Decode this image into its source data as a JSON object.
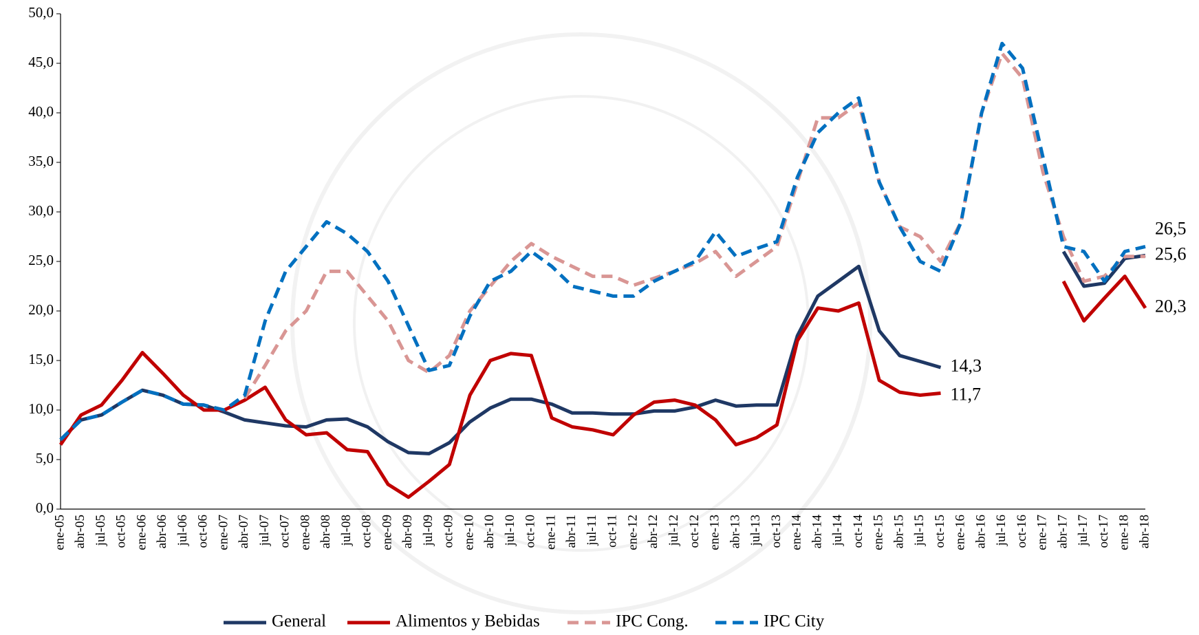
{
  "chart_data": {
    "type": "line",
    "categories": [
      "ene-05",
      "abr-05",
      "jul-05",
      "oct-05",
      "ene-06",
      "abr-06",
      "jul-06",
      "oct-06",
      "ene-07",
      "abr-07",
      "jul-07",
      "oct-07",
      "ene-08",
      "abr-08",
      "jul-08",
      "oct-08",
      "ene-09",
      "abr-09",
      "jul-09",
      "oct-09",
      "ene-10",
      "abr-10",
      "jul-10",
      "oct-10",
      "ene-11",
      "abr-11",
      "jul-11",
      "oct-11",
      "ene-12",
      "abr-12",
      "jul-12",
      "oct-12",
      "ene-13",
      "abr-13",
      "jul-13",
      "oct-13",
      "ene-14",
      "abr-14",
      "jul-14",
      "oct-14",
      "ene-15",
      "abr-15",
      "jul-15",
      "oct-15",
      "ene-16",
      "abr-16",
      "jul-16",
      "oct-16",
      "ene-17",
      "abr-17",
      "jul-17",
      "oct-17",
      "ene-18",
      "abr-18"
    ],
    "series": [
      {
        "name": "General",
        "color": "#1f3864",
        "dash": false,
        "values": [
          7.0,
          9.0,
          9.5,
          10.8,
          12.0,
          11.5,
          10.6,
          10.5,
          9.8,
          9.0,
          8.7,
          8.4,
          8.3,
          9.0,
          9.1,
          8.3,
          6.8,
          5.7,
          5.6,
          6.7,
          8.8,
          10.2,
          11.1,
          11.1,
          10.6,
          9.7,
          9.7,
          9.6,
          9.6,
          9.9,
          9.9,
          10.3,
          11.0,
          10.4,
          10.5,
          10.5,
          17.5,
          21.5,
          23.0,
          24.5,
          18.0,
          15.5,
          14.9,
          14.3,
          null,
          null,
          null,
          null,
          null,
          26.0,
          22.5,
          22.8,
          25.3,
          25.6
        ],
        "value_labels": [
          null,
          null,
          null,
          null,
          null,
          null,
          null,
          null,
          null,
          null,
          null,
          null,
          null,
          null,
          null,
          null,
          null,
          null,
          null,
          null,
          null,
          null,
          null,
          null,
          null,
          null,
          null,
          null,
          null,
          null,
          null,
          null,
          null,
          null,
          null,
          null,
          null,
          null,
          null,
          null,
          null,
          null,
          null,
          "14,3",
          null,
          null,
          null,
          null,
          null,
          null,
          null,
          null,
          null,
          "25,6"
        ]
      },
      {
        "name": "Alimentos y Bebidas",
        "color": "#c00000",
        "dash": false,
        "values": [
          6.5,
          9.5,
          10.5,
          13.0,
          15.8,
          13.7,
          11.5,
          10.0,
          10.0,
          11.0,
          12.3,
          9.0,
          7.5,
          7.7,
          6.0,
          5.8,
          2.5,
          1.2,
          2.8,
          4.5,
          11.5,
          15.0,
          15.7,
          15.5,
          9.2,
          8.3,
          8.0,
          7.5,
          9.5,
          10.8,
          11.0,
          10.5,
          9.0,
          6.5,
          7.2,
          8.5,
          17.0,
          20.3,
          20.0,
          20.8,
          13.0,
          11.8,
          11.5,
          11.7,
          null,
          null,
          null,
          null,
          null,
          23.0,
          19.0,
          21.3,
          23.5,
          20.3
        ],
        "value_labels": [
          null,
          null,
          null,
          null,
          null,
          null,
          null,
          null,
          null,
          null,
          null,
          null,
          null,
          null,
          null,
          null,
          null,
          null,
          null,
          null,
          null,
          null,
          null,
          null,
          null,
          null,
          null,
          null,
          null,
          null,
          null,
          null,
          null,
          null,
          null,
          null,
          null,
          null,
          null,
          null,
          null,
          null,
          null,
          "11,7",
          null,
          null,
          null,
          null,
          null,
          null,
          null,
          null,
          null,
          "20,3"
        ]
      },
      {
        "name": "IPC Cong.",
        "color": "#d99694",
        "dash": true,
        "values": [
          null,
          null,
          null,
          null,
          null,
          null,
          null,
          null,
          null,
          11.2,
          14.5,
          18.0,
          20.0,
          24.0,
          24.0,
          21.5,
          19.0,
          15.0,
          13.8,
          15.5,
          20.0,
          22.5,
          25.0,
          26.8,
          25.5,
          24.5,
          23.5,
          23.5,
          22.6,
          23.3,
          24.0,
          24.8,
          26.0,
          23.5,
          25.0,
          26.5,
          33.0,
          39.5,
          39.5,
          41.0,
          33.0,
          28.5,
          27.5,
          25.0,
          29.0,
          40.0,
          46.0,
          43.5,
          34.0,
          27.5,
          23.0,
          23.5,
          25.5,
          25.5
        ],
        "value_labels": null
      },
      {
        "name": "IPC City",
        "color": "#0070c0",
        "dash": true,
        "values": [
          7.0,
          9.0,
          9.5,
          10.8,
          12.0,
          11.5,
          10.6,
          10.5,
          10.0,
          11.5,
          19.0,
          24.0,
          26.5,
          29.0,
          27.8,
          26.0,
          23.0,
          18.5,
          14.0,
          14.5,
          19.5,
          23.0,
          24.0,
          26.0,
          24.5,
          22.5,
          22.0,
          21.5,
          21.5,
          23.0,
          24.0,
          25.0,
          28.0,
          25.5,
          26.3,
          27.0,
          33.5,
          38.0,
          40.0,
          41.5,
          33.0,
          28.5,
          25.0,
          24.0,
          29.0,
          40.0,
          47.0,
          44.5,
          35.5,
          26.5,
          26.0,
          23.0,
          26.0,
          26.5
        ],
        "value_labels": [
          null,
          null,
          null,
          null,
          null,
          null,
          null,
          null,
          null,
          null,
          null,
          null,
          null,
          null,
          null,
          null,
          null,
          null,
          null,
          null,
          null,
          null,
          null,
          null,
          null,
          null,
          null,
          null,
          null,
          null,
          null,
          null,
          null,
          null,
          null,
          null,
          null,
          null,
          null,
          null,
          null,
          null,
          null,
          null,
          null,
          null,
          null,
          null,
          null,
          null,
          null,
          null,
          null,
          "26,5"
        ],
        "label_color": "#6a9bd8"
      }
    ],
    "ylim": [
      0,
      50
    ],
    "yticks": [
      {
        "value": 0,
        "label": "0,0"
      },
      {
        "value": 5,
        "label": "5,0"
      },
      {
        "value": 10,
        "label": "10,0"
      },
      {
        "value": 15,
        "label": "15,0"
      },
      {
        "value": 20,
        "label": "20,0"
      },
      {
        "value": 25,
        "label": "25,0"
      },
      {
        "value": 30,
        "label": "30,0"
      },
      {
        "value": 35,
        "label": "35,0"
      },
      {
        "value": 40,
        "label": "40,0"
      },
      {
        "value": 45,
        "label": "45,0"
      },
      {
        "value": 50,
        "label": "50,0"
      }
    ],
    "grid": false,
    "legend": "bottom"
  }
}
